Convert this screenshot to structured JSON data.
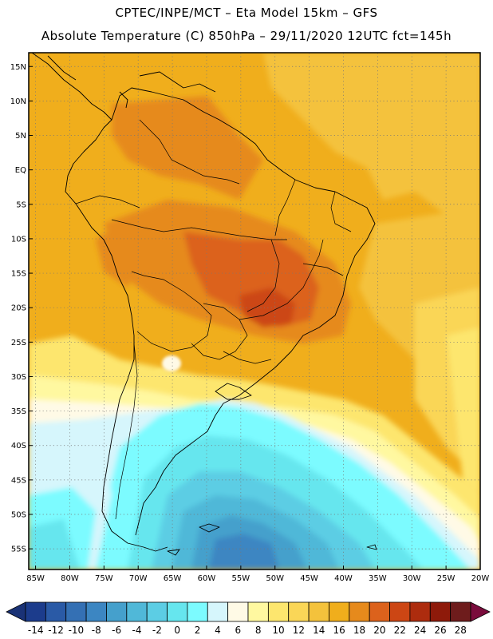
{
  "header": {
    "line1": "CPTEC/INPE/MCT –  Eta Model 15km – GFS",
    "line2": "Absolute Temperature (C) 850hPa – 29/11/2020 12UTC fct=145h"
  },
  "map": {
    "lat_labels": [
      "15N",
      "10N",
      "5N",
      "EQ",
      "5S",
      "10S",
      "15S",
      "20S",
      "25S",
      "30S",
      "35S",
      "40S",
      "45S",
      "50S",
      "55S"
    ],
    "lon_labels": [
      "85W",
      "80W",
      "75W",
      "70W",
      "65W",
      "60W",
      "55W",
      "50W",
      "45W",
      "40W",
      "35W",
      "30W",
      "25W",
      "20W"
    ],
    "lat_values": [
      15,
      10,
      5,
      0,
      -5,
      -10,
      -15,
      -20,
      -25,
      -30,
      -35,
      -40,
      -45,
      -50,
      -55
    ],
    "lon_values": [
      -85,
      -80,
      -75,
      -70,
      -65,
      -60,
      -55,
      -50,
      -45,
      -40,
      -35,
      -30,
      -25,
      -20
    ],
    "lon_range": [
      -86,
      -20
    ],
    "lat_range": [
      -58,
      17
    ]
  },
  "colorbar": {
    "labels": [
      "-14",
      "-12",
      "-10",
      "-8",
      "-6",
      "-4",
      "-2",
      "0",
      "2",
      "4",
      "6",
      "8",
      "10",
      "12",
      "14",
      "16",
      "18",
      "20",
      "22",
      "24",
      "26",
      "28"
    ],
    "colors": [
      "#1c3c8c",
      "#2a5aa6",
      "#3470b4",
      "#3c86c2",
      "#45a0cc",
      "#50b8d8",
      "#5ccde4",
      "#66e6ee",
      "#7cfbff",
      "#d6f6fc",
      "#fffae6",
      "#fff8a0",
      "#fde66e",
      "#fad657",
      "#f4c23c",
      "#f0ae1c",
      "#e68a1c",
      "#dc621c",
      "#cc4614",
      "#ad2c0e",
      "#8e1a0a",
      "#6e1c1c"
    ],
    "under_color": "#1a3276",
    "over_color": "#7a0c3c"
  }
}
